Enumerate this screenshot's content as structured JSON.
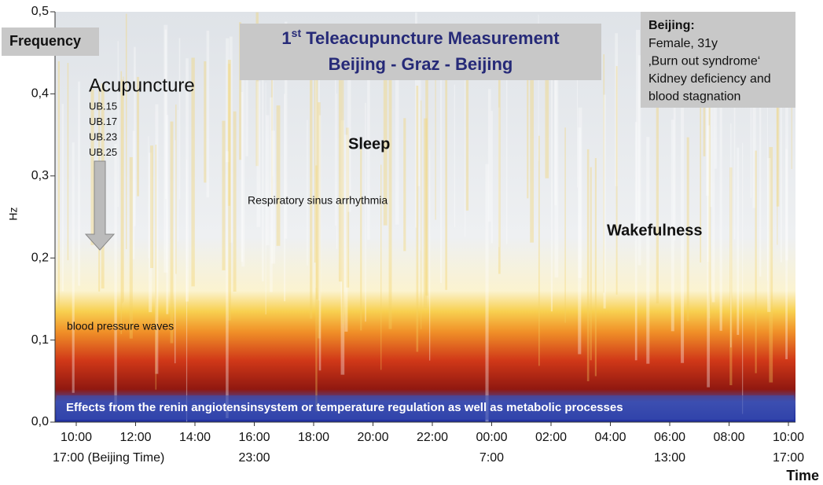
{
  "chart_data": {
    "type": "spectrogram",
    "title": {
      "number": "1",
      "suffix": "st",
      "text": " Teleacupuncture Measurement"
    },
    "subtitle": "Beijing - Graz - Beijing",
    "y_title": "Frequency",
    "ylabel": "Hz",
    "xlabel": "Time",
    "ylim": [
      0,
      0.5
    ],
    "yticks": [
      {
        "value": 0,
        "label": "0,0"
      },
      {
        "value": 0.1,
        "label": "0,1"
      },
      {
        "value": 0.2,
        "label": "0,2"
      },
      {
        "value": 0.3,
        "label": "0,3"
      },
      {
        "value": 0.4,
        "label": "0,4"
      },
      {
        "value": 0.5,
        "label": "0,5"
      }
    ],
    "categories": [
      "10:00",
      "12:00",
      "14:00",
      "16:00",
      "18:00",
      "20:00",
      "22:00",
      "00:00",
      "02:00",
      "04:00",
      "06:00",
      "08:00",
      "10:00"
    ],
    "beijing_time": [
      "17:00 (Beijing Time)",
      null,
      null,
      "23:00",
      null,
      null,
      null,
      "7:00",
      null,
      null,
      "13:00",
      null,
      "17:00"
    ],
    "acupuncture": {
      "label": "Acupuncture",
      "points": [
        "UB.15",
        "UB.17",
        "UB.23",
        "UB.25"
      ]
    },
    "annotations": {
      "sleep": "Sleep",
      "respiratory": "Respiratory sinus arrhythmia",
      "wakefulness": "Wakefulness",
      "blood_pressure": "blood pressure waves",
      "low_frequency": "Effects from the renin angiotensinsystem or temperature regulation as well as metabolic processes"
    },
    "patient": {
      "title": "Beijing:",
      "lines": [
        "Female, 31y",
        "‚Burn out syndrome‘",
        "Kidney deficiency and",
        "blood stagnation"
      ]
    }
  }
}
